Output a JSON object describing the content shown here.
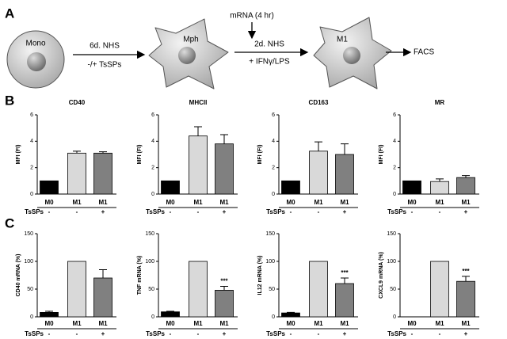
{
  "panels": [
    "A",
    "B",
    "C"
  ],
  "diagram": {
    "cells": [
      "Mono",
      "Mph",
      "M1"
    ],
    "step1": [
      "6d. NHS",
      "-/+ TsSPs"
    ],
    "step2_top": "mRNA (4 hr)",
    "step2": [
      "2d. NHS",
      "+ IFNγ/LPS"
    ],
    "output": "FACS"
  },
  "chart_data": [
    {
      "type": "bar",
      "title": "CD40",
      "ylabel": "MFI (FI)",
      "categories": [
        "M0",
        "M1",
        "M1"
      ],
      "treatment_label": "TsSPs",
      "treatment": [
        "-",
        "-",
        "+"
      ],
      "values": [
        1,
        3.1,
        3.1
      ],
      "errors": [
        null,
        0.15,
        0.1
      ],
      "colors": [
        "#000000",
        "#d9d9d9",
        "#808080"
      ],
      "ylim": [
        0,
        6
      ],
      "yticks": [
        0,
        2,
        4,
        6
      ]
    },
    {
      "type": "bar",
      "title": "MHCII",
      "ylabel": "MFI (FI)",
      "categories": [
        "M0",
        "M1",
        "M1"
      ],
      "treatment_label": "TsSPs",
      "treatment": [
        "-",
        "-",
        "+"
      ],
      "values": [
        1,
        4.4,
        3.8
      ],
      "errors": [
        null,
        0.7,
        0.7
      ],
      "colors": [
        "#000000",
        "#d9d9d9",
        "#808080"
      ],
      "ylim": [
        0,
        6
      ],
      "yticks": [
        0,
        2,
        4,
        6
      ]
    },
    {
      "type": "bar",
      "title": "CD163",
      "ylabel": "MFI (FI)",
      "categories": [
        "M0",
        "M1",
        "M1"
      ],
      "treatment_label": "TsSPs",
      "treatment": [
        "-",
        "-",
        "+"
      ],
      "values": [
        1,
        3.25,
        3.0
      ],
      "errors": [
        null,
        0.7,
        0.8
      ],
      "colors": [
        "#000000",
        "#d9d9d9",
        "#808080"
      ],
      "ylim": [
        0,
        6
      ],
      "yticks": [
        0,
        2,
        4,
        6
      ]
    },
    {
      "type": "bar",
      "title": "MR",
      "ylabel": "MFI (FI)",
      "categories": [
        "M0",
        "M1",
        "M1"
      ],
      "treatment_label": "TsSPs",
      "treatment": [
        "-",
        "-",
        "+"
      ],
      "values": [
        1,
        0.95,
        1.25
      ],
      "errors": [
        null,
        0.2,
        0.15
      ],
      "colors": [
        "#000000",
        "#d9d9d9",
        "#808080"
      ],
      "ylim": [
        0,
        6
      ],
      "yticks": [
        0,
        2,
        4,
        6
      ]
    },
    {
      "type": "bar",
      "ylabel": "CD40 mRNA (%)",
      "categories": [
        "M0",
        "M1",
        "M1"
      ],
      "treatment_label": "TsSPs",
      "treatment": [
        "-",
        "-",
        "+"
      ],
      "values": [
        8,
        100,
        70
      ],
      "errors": [
        2,
        null,
        15
      ],
      "annotations": [
        null,
        null,
        null
      ],
      "colors": [
        "#000000",
        "#d9d9d9",
        "#808080"
      ],
      "ylim": [
        0,
        150
      ],
      "yticks": [
        0,
        50,
        100,
        150
      ]
    },
    {
      "type": "bar",
      "ylabel": "TNF mRNA (%)",
      "categories": [
        "M0",
        "M1",
        "M1"
      ],
      "treatment_label": "TsSPs",
      "treatment": [
        "-",
        "-",
        "+"
      ],
      "values": [
        9,
        100,
        48
      ],
      "errors": [
        1,
        null,
        7
      ],
      "annotations": [
        null,
        null,
        "***"
      ],
      "colors": [
        "#000000",
        "#d9d9d9",
        "#808080"
      ],
      "ylim": [
        0,
        150
      ],
      "yticks": [
        0,
        50,
        100,
        150
      ]
    },
    {
      "type": "bar",
      "ylabel": "IL12 mRNA (%)",
      "categories": [
        "M0",
        "M1",
        "M1"
      ],
      "treatment_label": "TsSPs",
      "treatment": [
        "-",
        "-",
        "+"
      ],
      "values": [
        7,
        100,
        60
      ],
      "errors": [
        1,
        null,
        10
      ],
      "annotations": [
        null,
        null,
        "***"
      ],
      "colors": [
        "#000000",
        "#d9d9d9",
        "#808080"
      ],
      "ylim": [
        0,
        150
      ],
      "yticks": [
        0,
        50,
        100,
        150
      ]
    },
    {
      "type": "bar",
      "ylabel": "CXCL9 mRNA (%)",
      "categories": [
        "M0",
        "M1",
        "M1"
      ],
      "treatment_label": "TsSPs",
      "treatment": [
        "-",
        "-",
        "+"
      ],
      "values": [
        0,
        100,
        64
      ],
      "errors": [
        null,
        null,
        9
      ],
      "annotations": [
        null,
        null,
        "***"
      ],
      "colors": [
        "#000000",
        "#d9d9d9",
        "#808080"
      ],
      "ylim": [
        0,
        150
      ],
      "yticks": [
        0,
        50,
        100,
        150
      ]
    }
  ]
}
